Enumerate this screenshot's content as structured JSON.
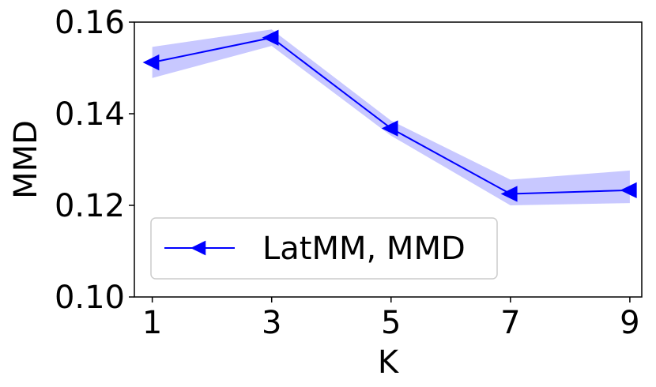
{
  "chart_data": {
    "type": "line",
    "title": "",
    "xlabel": "K",
    "ylabel": "MMD",
    "x": [
      1,
      3,
      5,
      7,
      9
    ],
    "xticks": [
      "1",
      "3",
      "5",
      "7",
      "9"
    ],
    "yticks": [
      "0.10",
      "0.12",
      "0.14",
      "0.16"
    ],
    "ylim": [
      0.1,
      0.16
    ],
    "xlim": [
      0.7,
      9.2
    ],
    "grid": false,
    "legend_position": "lower-left",
    "series": [
      {
        "name": "LatMM, MMD",
        "color": "#0000ff",
        "band_color": "#c8c8ff",
        "marker": "left-triangle",
        "values": [
          0.1512,
          0.1566,
          0.1368,
          0.1225,
          0.1233
        ],
        "lower": [
          0.1478,
          0.1548,
          0.1352,
          0.12,
          0.1205
        ],
        "upper": [
          0.1546,
          0.1584,
          0.1385,
          0.1256,
          0.1276
        ]
      }
    ]
  }
}
